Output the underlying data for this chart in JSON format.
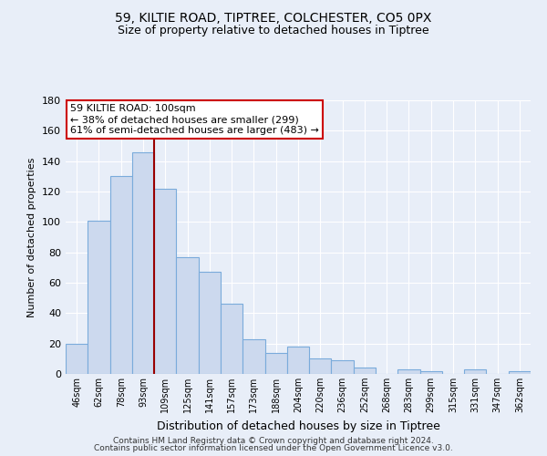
{
  "title1": "59, KILTIE ROAD, TIPTREE, COLCHESTER, CO5 0PX",
  "title2": "Size of property relative to detached houses in Tiptree",
  "xlabel": "Distribution of detached houses by size in Tiptree",
  "ylabel": "Number of detached properties",
  "bar_labels": [
    "46sqm",
    "62sqm",
    "78sqm",
    "93sqm",
    "109sqm",
    "125sqm",
    "141sqm",
    "157sqm",
    "173sqm",
    "188sqm",
    "204sqm",
    "220sqm",
    "236sqm",
    "252sqm",
    "268sqm",
    "283sqm",
    "299sqm",
    "315sqm",
    "331sqm",
    "347sqm",
    "362sqm"
  ],
  "bar_values": [
    20,
    101,
    130,
    146,
    122,
    77,
    67,
    46,
    23,
    14,
    18,
    10,
    9,
    4,
    0,
    3,
    2,
    0,
    3,
    0,
    2
  ],
  "bar_color": "#ccd9ee",
  "bar_edge_color": "#7aabdb",
  "highlight_line_color": "#990000",
  "annotation_text": "59 KILTIE ROAD: 100sqm\n← 38% of detached houses are smaller (299)\n61% of semi-detached houses are larger (483) →",
  "annotation_box_color": "#ffffff",
  "annotation_box_edge": "#cc0000",
  "ylim": [
    0,
    180
  ],
  "yticks": [
    0,
    20,
    40,
    60,
    80,
    100,
    120,
    140,
    160,
    180
  ],
  "footer1": "Contains HM Land Registry data © Crown copyright and database right 2024.",
  "footer2": "Contains public sector information licensed under the Open Government Licence v3.0.",
  "bg_color": "#e8eef8",
  "grid_color": "#ffffff"
}
